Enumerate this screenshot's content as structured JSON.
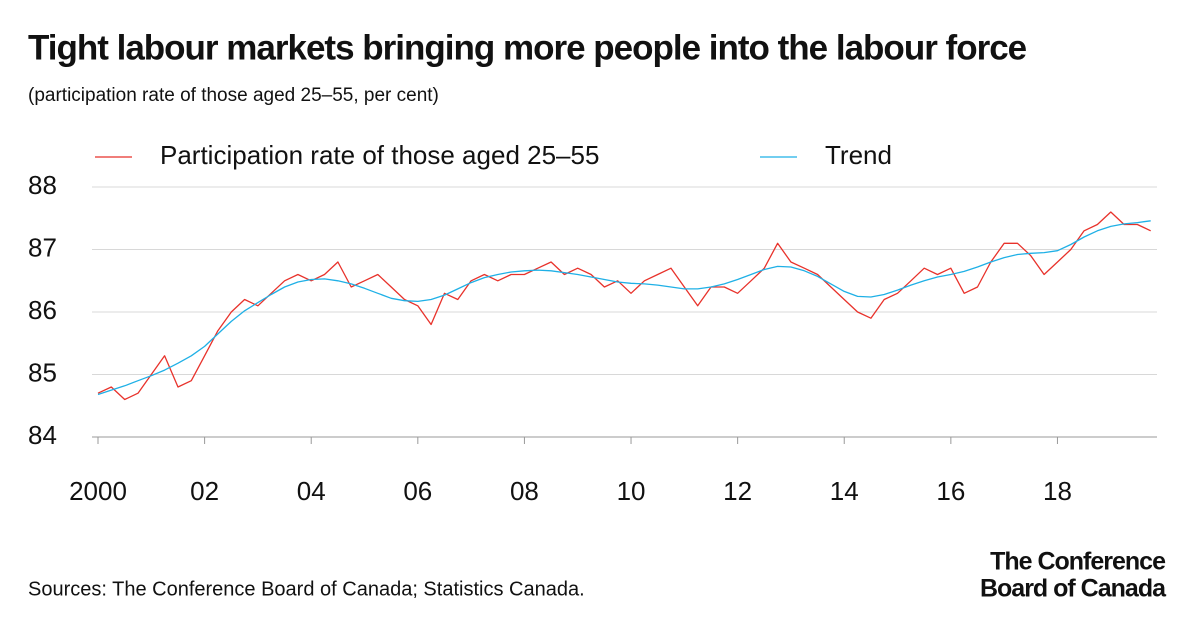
{
  "chart_data": {
    "type": "line",
    "title": "Tight labour markets bringing more people into the labour force",
    "subtitle": "(participation rate of those aged 25–55, per cent)",
    "source": "Sources: The Conference Board of Canada; Statistics Canada.",
    "logo": [
      "The Conference",
      "Board of Canada"
    ],
    "x": [
      2000,
      2000.25,
      2000.5,
      2000.75,
      2001,
      2001.25,
      2001.5,
      2001.75,
      2002,
      2002.25,
      2002.5,
      2002.75,
      2003,
      2003.25,
      2003.5,
      2003.75,
      2004,
      2004.25,
      2004.5,
      2004.75,
      2005,
      2005.25,
      2005.5,
      2005.75,
      2006,
      2006.25,
      2006.5,
      2006.75,
      2007,
      2007.25,
      2007.5,
      2007.75,
      2008,
      2008.25,
      2008.5,
      2008.75,
      2009,
      2009.25,
      2009.5,
      2009.75,
      2010,
      2010.25,
      2010.5,
      2010.75,
      2011,
      2011.25,
      2011.5,
      2011.75,
      2012,
      2012.25,
      2012.5,
      2012.75,
      2013,
      2013.25,
      2013.5,
      2013.75,
      2014,
      2014.25,
      2014.5,
      2014.75,
      2015,
      2015.25,
      2015.5,
      2015.75,
      2016,
      2016.25,
      2016.5,
      2016.75,
      2017,
      2017.25,
      2017.5,
      2017.75,
      2018,
      2018.25,
      2018.5,
      2018.75,
      2019,
      2019.25,
      2019.5,
      2019.75
    ],
    "series": [
      {
        "name": "Participation rate of those aged 25–55",
        "color": "#e8322b",
        "values": [
          84.7,
          84.8,
          84.6,
          84.7,
          85.0,
          85.3,
          84.8,
          84.9,
          85.3,
          85.7,
          86.0,
          86.2,
          86.1,
          86.3,
          86.5,
          86.6,
          86.5,
          86.6,
          86.8,
          86.4,
          86.5,
          86.6,
          86.4,
          86.2,
          86.1,
          85.8,
          86.3,
          86.2,
          86.5,
          86.6,
          86.5,
          86.6,
          86.6,
          86.7,
          86.8,
          86.6,
          86.7,
          86.6,
          86.4,
          86.5,
          86.3,
          86.5,
          86.6,
          86.7,
          86.4,
          86.1,
          86.4,
          86.4,
          86.3,
          86.5,
          86.7,
          87.1,
          86.8,
          86.7,
          86.6,
          86.4,
          86.2,
          86.0,
          85.9,
          86.2,
          86.3,
          86.5,
          86.7,
          86.6,
          86.7,
          86.3,
          86.4,
          86.8,
          87.1,
          87.1,
          86.9,
          86.6,
          86.8,
          87.0,
          87.3,
          87.4,
          87.6,
          87.4,
          87.4,
          87.3
        ]
      },
      {
        "name": "Trend",
        "color": "#1fb0e6",
        "values": [
          84.68,
          84.75,
          84.82,
          84.9,
          84.98,
          85.07,
          85.18,
          85.3,
          85.45,
          85.65,
          85.85,
          86.02,
          86.15,
          86.28,
          86.4,
          86.48,
          86.52,
          86.53,
          86.5,
          86.45,
          86.38,
          86.3,
          86.22,
          86.18,
          86.17,
          86.2,
          86.27,
          86.37,
          86.47,
          86.55,
          86.6,
          86.64,
          86.66,
          86.67,
          86.66,
          86.63,
          86.6,
          86.56,
          86.52,
          86.48,
          86.46,
          86.45,
          86.43,
          86.4,
          86.37,
          86.37,
          86.4,
          86.45,
          86.52,
          86.6,
          86.68,
          86.73,
          86.72,
          86.66,
          86.57,
          86.45,
          86.33,
          86.25,
          86.24,
          86.28,
          86.35,
          86.43,
          86.5,
          86.56,
          86.6,
          86.65,
          86.72,
          86.8,
          86.87,
          86.92,
          86.94,
          86.95,
          86.98,
          87.08,
          87.2,
          87.3,
          87.37,
          87.41,
          87.43,
          87.46
        ]
      }
    ],
    "xlim": [
      2000,
      2019.83
    ],
    "xticks": [
      2000,
      {
        "value": 2002,
        "label": "02"
      },
      {
        "value": 2004,
        "label": "04"
      },
      {
        "value": 2006,
        "label": "06"
      },
      {
        "value": 2008,
        "label": "08"
      },
      {
        "value": 2010,
        "label": "10"
      },
      {
        "value": 2012,
        "label": "12"
      },
      {
        "value": 2014,
        "label": "14"
      },
      {
        "value": 2016,
        "label": "16"
      },
      {
        "value": 2018,
        "label": "18"
      }
    ],
    "ylim": [
      84,
      88
    ],
    "yticks": [
      84,
      85,
      86,
      87,
      88
    ],
    "grid": true
  }
}
